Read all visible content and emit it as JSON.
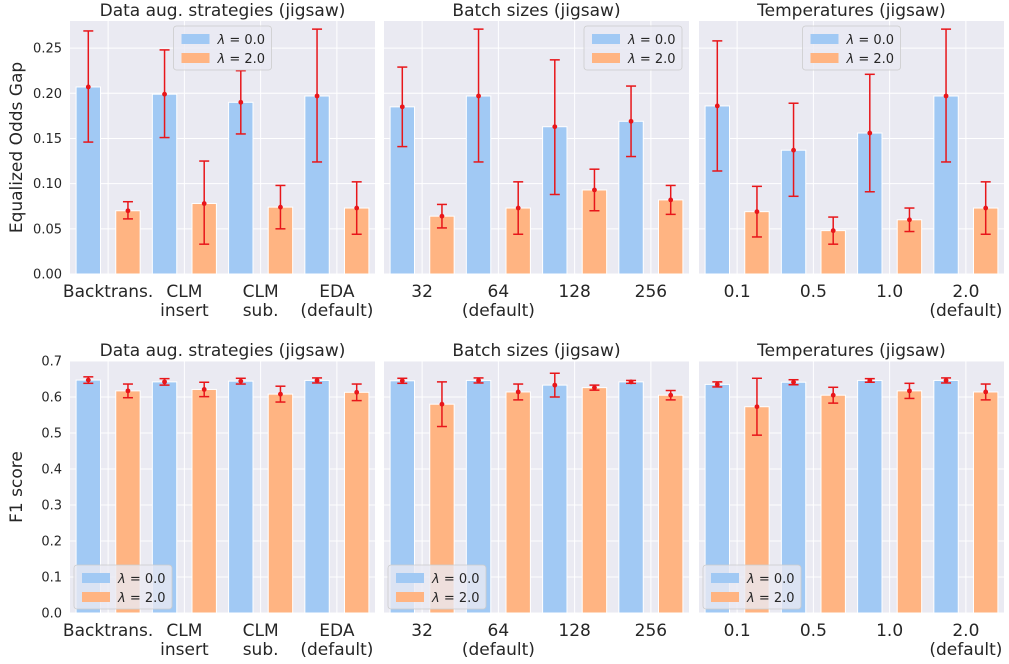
{
  "colors": {
    "lambda0": "#a1c9f4",
    "lambda2": "#ffb482",
    "error_bar": "#e8161a",
    "panel_bg": "#eaeaf2",
    "grid": "#ffffff"
  },
  "chart_data": [
    {
      "type": "bar",
      "row": 0,
      "col": 0,
      "title": "Data aug. strategies (jigsaw)",
      "ylabel": "Equalized Odds Gap",
      "ylim": [
        0,
        0.28
      ],
      "yticks": [
        "0.00",
        "0.05",
        "0.10",
        "0.15",
        "0.20",
        "0.25"
      ],
      "categories": [
        [
          "Backtrans."
        ],
        [
          "CLM",
          "insert"
        ],
        [
          "CLM",
          "sub."
        ],
        [
          "EDA",
          "(default)"
        ]
      ],
      "legend": {
        "position": "top-center"
      },
      "series": [
        {
          "name": "λ = 0.0",
          "values": [
            0.207,
            0.199,
            0.19,
            0.197
          ],
          "err_low": [
            0.146,
            0.151,
            0.155,
            0.124
          ],
          "err_high": [
            0.269,
            0.248,
            0.225,
            0.271
          ]
        },
        {
          "name": "λ = 2.0",
          "values": [
            0.07,
            0.078,
            0.074,
            0.073
          ],
          "err_low": [
            0.061,
            0.033,
            0.05,
            0.044
          ],
          "err_high": [
            0.08,
            0.125,
            0.098,
            0.102
          ]
        }
      ]
    },
    {
      "type": "bar",
      "row": 0,
      "col": 1,
      "title": "Batch sizes (jigsaw)",
      "ylim": [
        0,
        0.28
      ],
      "categories": [
        [
          "32"
        ],
        [
          "64",
          "(default)"
        ],
        [
          "128"
        ],
        [
          "256"
        ]
      ],
      "legend": {
        "position": "top-right"
      },
      "series": [
        {
          "name": "λ = 0.0",
          "values": [
            0.185,
            0.197,
            0.163,
            0.169
          ],
          "err_low": [
            0.141,
            0.124,
            0.088,
            0.13
          ],
          "err_high": [
            0.229,
            0.271,
            0.237,
            0.208
          ]
        },
        {
          "name": "λ = 2.0",
          "values": [
            0.064,
            0.073,
            0.093,
            0.082
          ],
          "err_low": [
            0.051,
            0.044,
            0.07,
            0.066
          ],
          "err_high": [
            0.077,
            0.102,
            0.116,
            0.098
          ]
        }
      ]
    },
    {
      "type": "bar",
      "row": 0,
      "col": 2,
      "title": "Temperatures (jigsaw)",
      "ylim": [
        0,
        0.28
      ],
      "categories": [
        [
          "0.1"
        ],
        [
          "0.5"
        ],
        [
          "1.0"
        ],
        [
          "2.0",
          "(default)"
        ]
      ],
      "legend": {
        "position": "top-center"
      },
      "series": [
        {
          "name": "λ = 0.0",
          "values": [
            0.186,
            0.137,
            0.156,
            0.197
          ],
          "err_low": [
            0.114,
            0.086,
            0.091,
            0.124
          ],
          "err_high": [
            0.258,
            0.189,
            0.221,
            0.271
          ]
        },
        {
          "name": "λ = 2.0",
          "values": [
            0.069,
            0.048,
            0.06,
            0.073
          ],
          "err_low": [
            0.041,
            0.033,
            0.047,
            0.044
          ],
          "err_high": [
            0.097,
            0.063,
            0.073,
            0.102
          ]
        }
      ]
    },
    {
      "type": "bar",
      "row": 1,
      "col": 0,
      "title": "Data aug. strategies (jigsaw)",
      "ylabel": "F1 score",
      "ylim": [
        0,
        0.7
      ],
      "yticks": [
        "0.0",
        "0.1",
        "0.2",
        "0.3",
        "0.4",
        "0.5",
        "0.6",
        "0.7"
      ],
      "categories": [
        [
          "Backtrans."
        ],
        [
          "CLM",
          "insert"
        ],
        [
          "CLM",
          "sub."
        ],
        [
          "EDA",
          "(default)"
        ]
      ],
      "legend": {
        "position": "bottom-left"
      },
      "series": [
        {
          "name": "λ = 0.0",
          "values": [
            0.647,
            0.642,
            0.644,
            0.646
          ],
          "err_low": [
            0.638,
            0.633,
            0.636,
            0.639
          ],
          "err_high": [
            0.656,
            0.651,
            0.652,
            0.653
          ]
        },
        {
          "name": "λ = 2.0",
          "values": [
            0.617,
            0.621,
            0.608,
            0.613
          ],
          "err_low": [
            0.598,
            0.601,
            0.586,
            0.59
          ],
          "err_high": [
            0.636,
            0.641,
            0.63,
            0.636
          ]
        }
      ]
    },
    {
      "type": "bar",
      "row": 1,
      "col": 1,
      "title": "Batch sizes (jigsaw)",
      "ylim": [
        0,
        0.7
      ],
      "categories": [
        [
          "32"
        ],
        [
          "64",
          "(default)"
        ],
        [
          "128"
        ],
        [
          "256"
        ]
      ],
      "legend": {
        "position": "bottom-left"
      },
      "series": [
        {
          "name": "λ = 0.0",
          "values": [
            0.645,
            0.646,
            0.633,
            0.642
          ],
          "err_low": [
            0.638,
            0.639,
            0.6,
            0.638
          ],
          "err_high": [
            0.652,
            0.653,
            0.666,
            0.646
          ]
        },
        {
          "name": "λ = 2.0",
          "values": [
            0.58,
            0.614,
            0.626,
            0.605
          ],
          "err_low": [
            0.518,
            0.592,
            0.619,
            0.592
          ],
          "err_high": [
            0.642,
            0.636,
            0.633,
            0.618
          ]
        }
      ]
    },
    {
      "type": "bar",
      "row": 1,
      "col": 2,
      "title": "Temperatures (jigsaw)",
      "ylim": [
        0,
        0.7
      ],
      "categories": [
        [
          "0.1"
        ],
        [
          "0.5"
        ],
        [
          "1.0"
        ],
        [
          "2.0",
          "(default)"
        ]
      ],
      "legend": {
        "position": "bottom-left"
      },
      "series": [
        {
          "name": "λ = 0.0",
          "values": [
            0.635,
            0.641,
            0.646,
            0.646
          ],
          "err_low": [
            0.628,
            0.634,
            0.641,
            0.639
          ],
          "err_high": [
            0.642,
            0.648,
            0.651,
            0.653
          ]
        },
        {
          "name": "λ = 2.0",
          "values": [
            0.573,
            0.605,
            0.617,
            0.614
          ],
          "err_low": [
            0.494,
            0.583,
            0.596,
            0.592
          ],
          "err_high": [
            0.652,
            0.627,
            0.638,
            0.636
          ]
        }
      ]
    }
  ]
}
